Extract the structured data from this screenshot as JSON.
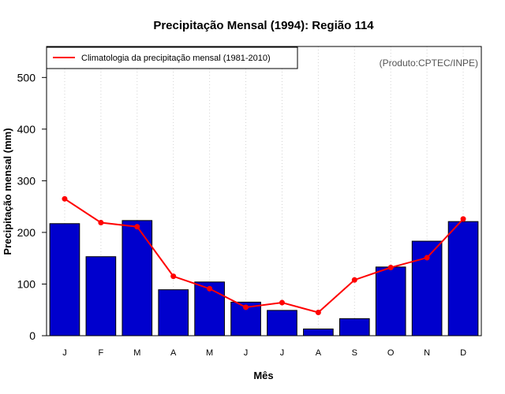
{
  "chart_data": {
    "type": "bar",
    "title": "Precipitação Mensal (1994): Região 114",
    "xlabel": "Mês",
    "ylabel": "Precipitação mensal (mm)",
    "ylim": [
      0,
      560
    ],
    "yticks": [
      0,
      100,
      200,
      300,
      400,
      500
    ],
    "categories": [
      "J",
      "F",
      "M",
      "A",
      "M",
      "J",
      "J",
      "A",
      "S",
      "O",
      "N",
      "D"
    ],
    "series": [
      {
        "name": "Precipitação mensal 1994",
        "kind": "bar",
        "color": "#0000cd",
        "values": [
          217,
          153,
          223,
          89,
          104,
          65,
          49,
          13,
          33,
          133,
          183,
          221
        ]
      },
      {
        "name": "Climatologia da precipitação mensal (1981-2010)",
        "kind": "line",
        "color": "#ff0000",
        "values": [
          265,
          219,
          211,
          115,
          91,
          55,
          64,
          45,
          108,
          132,
          151,
          226
        ]
      }
    ],
    "grid": "vertical-dotted",
    "legend_position": "top-left",
    "source_note": "(Produto:CPTEC/INPE)"
  }
}
